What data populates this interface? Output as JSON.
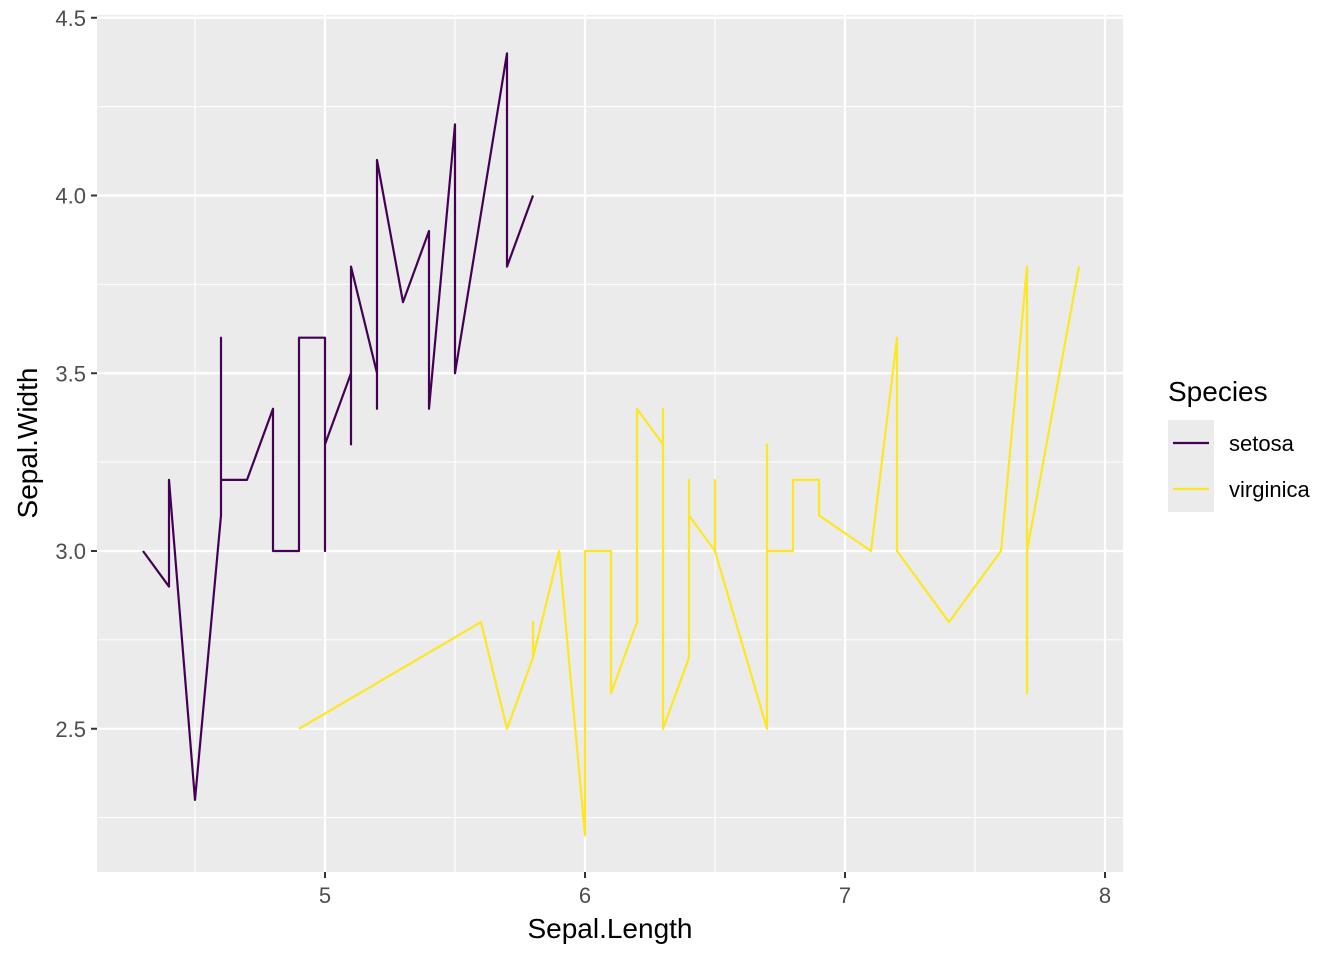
{
  "chart_data": {
    "type": "line",
    "xlabel": "Sepal.Length",
    "ylabel": "Sepal.Width",
    "xlim": [
      4.21,
      8.09
    ],
    "ylim": [
      2.16,
      4.51
    ],
    "x_ticks": [
      5,
      6,
      7,
      8
    ],
    "x_tick_labels": [
      "5",
      "6",
      "7",
      "8"
    ],
    "y_ticks": [
      2.5,
      3.0,
      3.5,
      4.0,
      4.5
    ],
    "y_tick_labels": [
      "2.5",
      "3.0",
      "3.5",
      "4.0",
      "4.5"
    ],
    "grid": true,
    "legend": {
      "title": "Species",
      "placement": "right"
    },
    "series": [
      {
        "name": "setosa",
        "color": "#440154",
        "points": [
          [
            4.3,
            3.0
          ],
          [
            4.4,
            2.9
          ],
          [
            4.4,
            3.0
          ],
          [
            4.4,
            3.2
          ],
          [
            4.5,
            2.3
          ],
          [
            4.6,
            3.1
          ],
          [
            4.6,
            3.4
          ],
          [
            4.6,
            3.6
          ],
          [
            4.6,
            3.2
          ],
          [
            4.7,
            3.2
          ],
          [
            4.7,
            3.2
          ],
          [
            4.8,
            3.4
          ],
          [
            4.8,
            3.0
          ],
          [
            4.8,
            3.4
          ],
          [
            4.8,
            3.1
          ],
          [
            4.8,
            3.0
          ],
          [
            4.9,
            3.0
          ],
          [
            4.9,
            3.1
          ],
          [
            4.9,
            3.1
          ],
          [
            4.9,
            3.6
          ],
          [
            5.0,
            3.6
          ],
          [
            5.0,
            3.4
          ],
          [
            5.0,
            3.0
          ],
          [
            5.0,
            3.4
          ],
          [
            5.0,
            3.2
          ],
          [
            5.0,
            3.5
          ],
          [
            5.0,
            3.5
          ],
          [
            5.0,
            3.3
          ],
          [
            5.1,
            3.5
          ],
          [
            5.1,
            3.5
          ],
          [
            5.1,
            3.8
          ],
          [
            5.1,
            3.7
          ],
          [
            5.1,
            3.3
          ],
          [
            5.1,
            3.4
          ],
          [
            5.1,
            3.8
          ],
          [
            5.1,
            3.8
          ],
          [
            5.2,
            3.5
          ],
          [
            5.2,
            3.4
          ],
          [
            5.2,
            4.1
          ],
          [
            5.3,
            3.7
          ],
          [
            5.4,
            3.9
          ],
          [
            5.4,
            3.7
          ],
          [
            5.4,
            3.9
          ],
          [
            5.4,
            3.4
          ],
          [
            5.4,
            3.4
          ],
          [
            5.5,
            4.2
          ],
          [
            5.5,
            3.5
          ],
          [
            5.7,
            4.4
          ],
          [
            5.7,
            3.8
          ],
          [
            5.8,
            4.0
          ]
        ]
      },
      {
        "name": "virginica",
        "color": "#FDE725",
        "points": [
          [
            4.9,
            2.5
          ],
          [
            5.6,
            2.8
          ],
          [
            5.7,
            2.5
          ],
          [
            5.8,
            2.7
          ],
          [
            5.8,
            2.8
          ],
          [
            5.8,
            2.7
          ],
          [
            5.9,
            3.0
          ],
          [
            6.0,
            2.2
          ],
          [
            6.0,
            3.0
          ],
          [
            6.1,
            3.0
          ],
          [
            6.1,
            2.6
          ],
          [
            6.2,
            2.8
          ],
          [
            6.2,
            3.4
          ],
          [
            6.3,
            3.3
          ],
          [
            6.3,
            2.9
          ],
          [
            6.3,
            2.7
          ],
          [
            6.3,
            2.8
          ],
          [
            6.3,
            3.4
          ],
          [
            6.3,
            2.5
          ],
          [
            6.4,
            2.7
          ],
          [
            6.4,
            3.2
          ],
          [
            6.4,
            2.8
          ],
          [
            6.4,
            2.8
          ],
          [
            6.4,
            3.1
          ],
          [
            6.5,
            3.0
          ],
          [
            6.5,
            3.2
          ],
          [
            6.5,
            3.0
          ],
          [
            6.5,
            3.0
          ],
          [
            6.7,
            2.5
          ],
          [
            6.7,
            3.3
          ],
          [
            6.7,
            3.1
          ],
          [
            6.7,
            3.3
          ],
          [
            6.7,
            3.0
          ],
          [
            6.8,
            3.0
          ],
          [
            6.8,
            3.2
          ],
          [
            6.9,
            3.2
          ],
          [
            6.9,
            3.1
          ],
          [
            6.9,
            3.1
          ],
          [
            7.1,
            3.0
          ],
          [
            7.2,
            3.6
          ],
          [
            7.2,
            3.2
          ],
          [
            7.2,
            3.0
          ],
          [
            7.3,
            2.9
          ],
          [
            7.4,
            2.8
          ],
          [
            7.6,
            3.0
          ],
          [
            7.7,
            3.8
          ],
          [
            7.7,
            2.6
          ],
          [
            7.7,
            2.8
          ],
          [
            7.7,
            3.0
          ],
          [
            7.9,
            3.8
          ]
        ]
      }
    ]
  }
}
